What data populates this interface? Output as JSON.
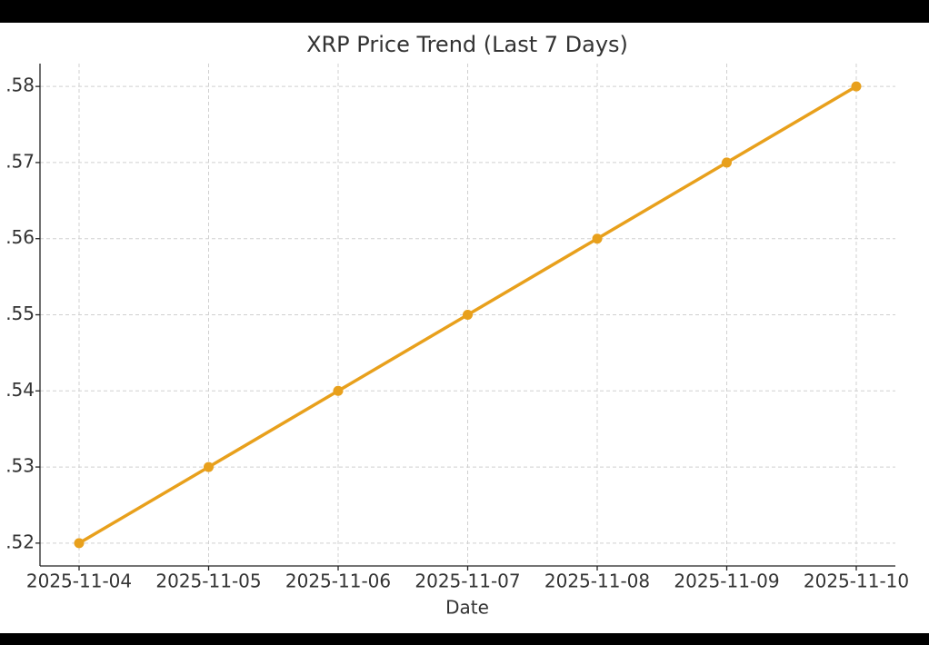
{
  "chart_data": {
    "type": "line",
    "title": "XRP Price Trend (Last 7 Days)",
    "x_label": "Date",
    "categories": [
      "2025-11-04",
      "2025-11-05",
      "2025-11-06",
      "2025-11-07",
      "2025-11-08",
      "2025-11-09",
      "2025-11-10"
    ],
    "series": [
      {
        "name": "XRP",
        "color": "#e8a01c",
        "values": [
          0.52,
          0.53,
          0.54,
          0.55,
          0.56,
          0.57,
          0.58
        ]
      }
    ],
    "ylim": [
      0.517,
      0.583
    ],
    "yticks": [
      {
        "value": 0.52,
        "label": ".52"
      },
      {
        "value": 0.53,
        "label": ".53"
      },
      {
        "value": 0.54,
        "label": ".54"
      },
      {
        "value": 0.55,
        "label": ".55"
      },
      {
        "value": 0.56,
        "label": ".56"
      },
      {
        "value": 0.57,
        "label": ".57"
      },
      {
        "value": 0.58,
        "label": ".58"
      }
    ],
    "grid": true
  }
}
